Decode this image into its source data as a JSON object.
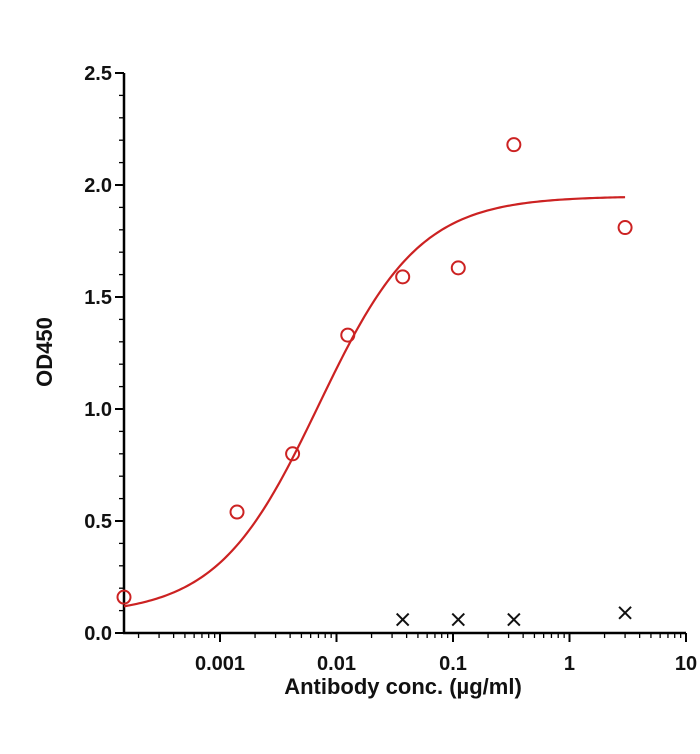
{
  "chart_data": {
    "type": "scatter",
    "title": "",
    "xlabel": "Antibody conc. (µg/ml)",
    "ylabel": "OD450",
    "xscale": "log",
    "xlim": [
      0.00015,
      10
    ],
    "ylim": [
      0,
      2.5
    ],
    "x_ticks": [
      {
        "value": 0.001,
        "label": "0.001"
      },
      {
        "value": 0.01,
        "label": "0.01"
      },
      {
        "value": 0.1,
        "label": "0.1"
      },
      {
        "value": 1,
        "label": "1"
      },
      {
        "value": 10,
        "label": "10"
      }
    ],
    "y_ticks": [
      {
        "value": 0,
        "label": "0.0"
      },
      {
        "value": 0.5,
        "label": "0.5"
      },
      {
        "value": 1.0,
        "label": "1.0"
      },
      {
        "value": 1.5,
        "label": "1.5"
      },
      {
        "value": 2.0,
        "label": "2.0"
      },
      {
        "value": 2.5,
        "label": "2.5"
      }
    ],
    "grid": false,
    "legend": "none",
    "series": [
      {
        "marker": "open-circle",
        "color": "#cc2222",
        "x": [
          0.00015,
          0.0014,
          0.0042,
          0.0125,
          0.037,
          0.111,
          0.333,
          3.0
        ],
        "y": [
          0.16,
          0.54,
          0.8,
          1.33,
          1.59,
          1.63,
          2.18,
          1.81
        ]
      },
      {
        "marker": "x",
        "color": "#111111",
        "x": [
          0.037,
          0.111,
          0.333,
          3.0
        ],
        "y": [
          0.06,
          0.06,
          0.06,
          0.09
        ]
      }
    ],
    "fit_curve": {
      "type": "4PL",
      "color": "#cc2222",
      "bottom": 0.08,
      "top": 1.95,
      "ec50": 0.007,
      "hill": 1.0,
      "x_range": [
        0.00015,
        3.0
      ]
    }
  }
}
